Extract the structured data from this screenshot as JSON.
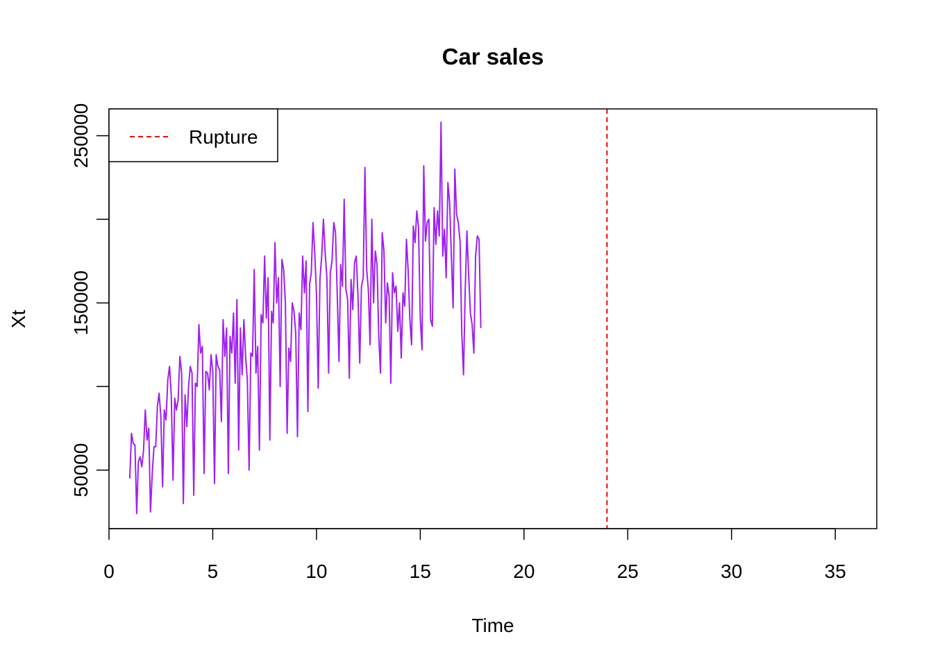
{
  "chart_data": {
    "type": "line",
    "title": "Car sales",
    "xlabel": "Time",
    "ylabel": "Xt",
    "xlim": [
      0,
      37
    ],
    "ylim": [
      15000,
      266000
    ],
    "x_ticks": [
      0,
      5,
      10,
      15,
      20,
      25,
      30,
      35
    ],
    "x_tick_labels": [
      "0",
      "5",
      "10",
      "15",
      "20",
      "25",
      "30",
      "35"
    ],
    "y_ticks": [
      50000,
      100000,
      150000,
      200000,
      250000
    ],
    "y_tick_labels": [
      "50000",
      "",
      "150000",
      "",
      "250000"
    ],
    "grid": false,
    "legend": {
      "placement": "top-left",
      "entries": [
        {
          "label": "Rupture",
          "color": "#ff0000",
          "style": "dashed"
        }
      ]
    },
    "series": [
      {
        "color": "#a020f0",
        "start_time": 1,
        "frequency": 12,
        "values": [
          45000,
          72000,
          66000,
          65000,
          24000,
          55000,
          58000,
          52000,
          62000,
          86000,
          68000,
          75000,
          25000,
          48000,
          64000,
          64000,
          88000,
          96000,
          82000,
          40000,
          86000,
          80000,
          104000,
          112000,
          95000,
          44000,
          93000,
          86000,
          92000,
          118000,
          108000,
          30000,
          95000,
          76000,
          100000,
          112000,
          108000,
          35000,
          102000,
          100000,
          137000,
          120000,
          124000,
          48000,
          109000,
          108000,
          98000,
          119000,
          109000,
          42000,
          119000,
          112000,
          110000,
          79000,
          140000,
          118000,
          135000,
          48000,
          130000,
          120000,
          144000,
          102000,
          152000,
          62000,
          135000,
          107000,
          140000,
          118000,
          104000,
          50000,
          120000,
          118000,
          170000,
          108000,
          124000,
          62000,
          143000,
          138000,
          178000,
          141000,
          165000,
          68000,
          145000,
          138000,
          186000,
          150000,
          165000,
          100000,
          176000,
          170000,
          150000,
          72000,
          123000,
          115000,
          150000,
          145000,
          132000,
          70000,
          144000,
          134000,
          178000,
          156000,
          175000,
          85000,
          161000,
          168000,
          198000,
          180000,
          155000,
          99000,
          164000,
          178000,
          200000,
          180000,
          165000,
          108000,
          168000,
          175000,
          198000,
          192000,
          155000,
          115000,
          173000,
          160000,
          212000,
          158000,
          152000,
          105000,
          164000,
          146000,
          174000,
          178000,
          154000,
          114000,
          160000,
          165000,
          231000,
          170000,
          158000,
          125000,
          200000,
          150000,
          181000,
          173000,
          130000,
          108000,
          192000,
          181000,
          138000,
          162000,
          154000,
          102000,
          168000,
          156000,
          160000,
          133000,
          150000,
          117000,
          156000,
          148000,
          188000,
          170000,
          140000,
          125000,
          196000,
          186000,
          205000,
          195000,
          141000,
          122000,
          232000,
          187000,
          198000,
          200000,
          140000,
          136000,
          207000,
          185000,
          205000,
          190000,
          258000,
          178000,
          194000,
          165000,
          222000,
          210000,
          178000,
          147000,
          230000,
          203000,
          198000,
          187000,
          132000,
          107000,
          157000,
          193000,
          167000,
          144000,
          137000,
          120000,
          178000,
          190000,
          188000,
          135000
        ]
      }
    ],
    "annotations": [
      {
        "type": "vline",
        "x": 24,
        "label": "Rupture",
        "color": "#ff0000",
        "style": "dashed"
      }
    ]
  }
}
